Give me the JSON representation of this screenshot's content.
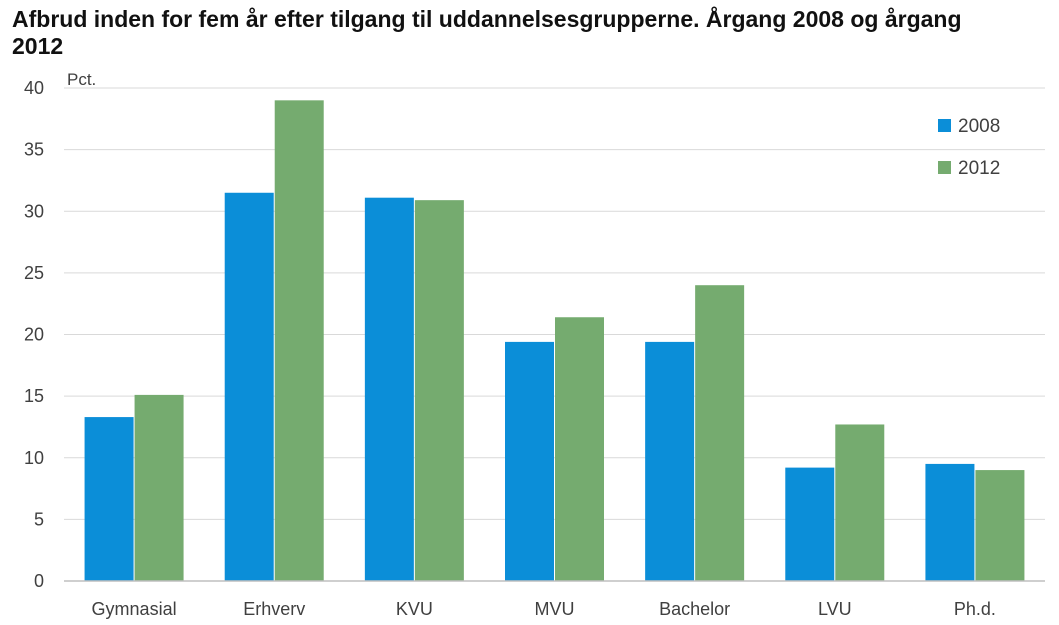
{
  "chart_data": {
    "type": "bar",
    "title": "Afbrud inden for fem år efter tilgang til uddannelsesgrupperne. Årgang 2008 og årgang 2012",
    "ylabel": "Pct.",
    "xlabel": "",
    "ylim": [
      0,
      40
    ],
    "yticks": [
      0,
      5,
      10,
      15,
      20,
      25,
      30,
      35,
      40
    ],
    "categories": [
      "Gymnasial",
      "Erhverv",
      "KVU",
      "MVU",
      "Bachelor",
      "LVU",
      "Ph.d."
    ],
    "series": [
      {
        "name": "2008",
        "color": "#0b8ed8",
        "values": [
          13.3,
          31.5,
          31.1,
          19.4,
          19.4,
          9.2,
          9.5
        ]
      },
      {
        "name": "2012",
        "color": "#75ab6f",
        "values": [
          15.1,
          39.0,
          30.9,
          21.4,
          24.0,
          12.7,
          9.0
        ]
      }
    ],
    "grid": true,
    "legend": "top-right"
  }
}
